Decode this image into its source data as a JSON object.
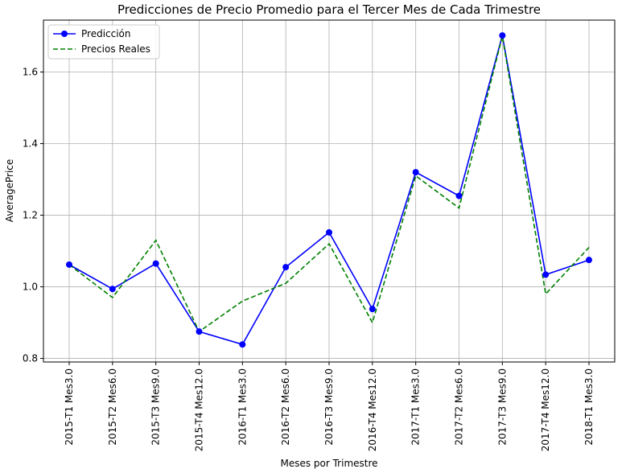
{
  "chart_data": {
    "type": "line",
    "title": "Predicciones de Precio Promedio para el Tercer Mes de Cada Trimestre",
    "xlabel": "Meses por Trimestre",
    "ylabel": "AveragePrice",
    "categories": [
      "2015-T1 Mes3.0",
      "2015-T2 Mes6.0",
      "2015-T3 Mes9.0",
      "2015-T4 Mes12.0",
      "2016-T1 Mes3.0",
      "2016-T2 Mes6.0",
      "2016-T3 Mes9.0",
      "2016-T4 Mes12.0",
      "2017-T1 Mes3.0",
      "2017-T2 Mes6.0",
      "2017-T3 Mes9.0",
      "2017-T4 Mes12.0",
      "2018-T1 Mes3.0"
    ],
    "ylim": [
      0.79,
      1.745
    ],
    "yticks": [
      "0.8",
      "1.0",
      "1.2",
      "1.4",
      "1.6"
    ],
    "grid": true,
    "legend_position": "top-left",
    "series": [
      {
        "name": "Predicción",
        "style": "solid-with-markers",
        "color": "#0000ff",
        "values": [
          1.062,
          0.994,
          1.065,
          0.875,
          0.839,
          1.055,
          1.152,
          0.938,
          1.32,
          1.254,
          1.702,
          1.034,
          1.075
        ]
      },
      {
        "name": "Precios Reales",
        "style": "dashed",
        "color": "#008000",
        "values": [
          1.062,
          0.97,
          1.13,
          0.875,
          0.96,
          1.01,
          1.12,
          0.9,
          1.31,
          1.22,
          1.7,
          0.98,
          1.11
        ]
      }
    ]
  }
}
